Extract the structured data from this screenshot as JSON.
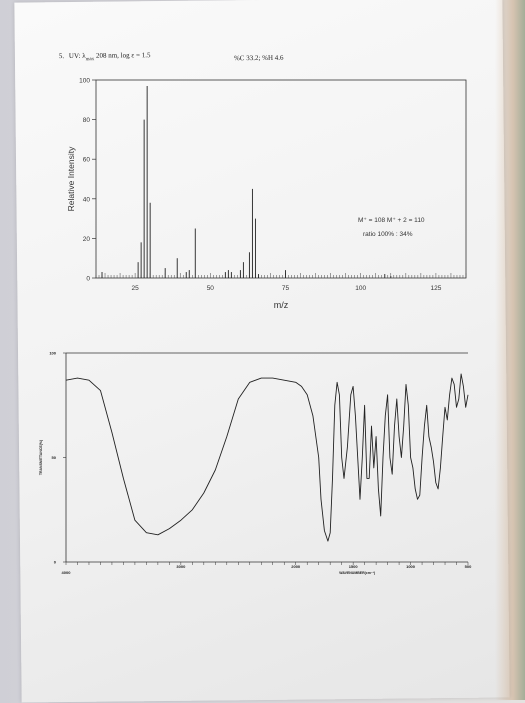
{
  "header": {
    "problem_no": "5.",
    "uv_text": "UV: λ",
    "uv_sub": "max",
    "uv_rest": "208 nm, log ε = 1.5",
    "composition": "%C 33.2; %H 4.6"
  },
  "chart_data": [
    {
      "type": "bar",
      "title": "",
      "xlabel": "m/z",
      "ylabel": "Relative Intensity",
      "xlim": [
        12,
        135
      ],
      "ylim": [
        0,
        100
      ],
      "xticks": [
        25,
        50,
        75,
        100,
        125
      ],
      "yticks": [
        0,
        20,
        40,
        60,
        80,
        100
      ],
      "peaks": [
        {
          "x": 14,
          "y": 3
        },
        {
          "x": 26,
          "y": 8
        },
        {
          "x": 27,
          "y": 18
        },
        {
          "x": 28,
          "y": 80
        },
        {
          "x": 29,
          "y": 97
        },
        {
          "x": 30,
          "y": 38
        },
        {
          "x": 35,
          "y": 5
        },
        {
          "x": 39,
          "y": 10
        },
        {
          "x": 42,
          "y": 3
        },
        {
          "x": 43,
          "y": 4
        },
        {
          "x": 45,
          "y": 25
        },
        {
          "x": 55,
          "y": 3
        },
        {
          "x": 56,
          "y": 4
        },
        {
          "x": 57,
          "y": 3
        },
        {
          "x": 60,
          "y": 4
        },
        {
          "x": 61,
          "y": 8
        },
        {
          "x": 63,
          "y": 13
        },
        {
          "x": 64,
          "y": 45
        },
        {
          "x": 65,
          "y": 30
        },
        {
          "x": 66,
          "y": 2
        },
        {
          "x": 75,
          "y": 4
        },
        {
          "x": 108,
          "y": 2
        },
        {
          "x": 110,
          "y": 1
        }
      ],
      "annotation_lines": [
        "M⁺ = 108   M⁺ + 2 = 110",
        "ratio 100% : 34%"
      ]
    },
    {
      "type": "line",
      "title": "",
      "xlabel": "WAVENUMBER(cm⁻¹)",
      "ylabel": "TRANSMITTANCE(%)",
      "xlim": [
        4000,
        500
      ],
      "ylim": [
        0,
        100
      ],
      "xtick_labels": [
        "4000",
        "3000",
        "2000",
        "1500",
        "1000",
        "500"
      ],
      "ytick_labels": [
        "0",
        "50",
        "100"
      ],
      "x": [
        4000,
        3900,
        3800,
        3700,
        3600,
        3500,
        3400,
        3300,
        3200,
        3100,
        3000,
        2900,
        2800,
        2700,
        2600,
        2500,
        2400,
        2300,
        2200,
        2100,
        2000,
        1950,
        1900,
        1850,
        1800,
        1780,
        1750,
        1720,
        1700,
        1680,
        1660,
        1640,
        1620,
        1600,
        1580,
        1550,
        1520,
        1500,
        1480,
        1460,
        1440,
        1420,
        1400,
        1380,
        1360,
        1340,
        1320,
        1300,
        1280,
        1260,
        1240,
        1220,
        1200,
        1180,
        1160,
        1140,
        1120,
        1100,
        1080,
        1060,
        1040,
        1020,
        1000,
        980,
        960,
        940,
        920,
        900,
        880,
        860,
        840,
        820,
        800,
        780,
        760,
        740,
        720,
        700,
        680,
        660,
        640,
        620,
        600,
        580,
        560,
        540,
        520,
        500
      ],
      "y": [
        87,
        88,
        87,
        82,
        62,
        40,
        20,
        14,
        13,
        16,
        20,
        25,
        33,
        44,
        60,
        78,
        86,
        88,
        88,
        87,
        86,
        84,
        80,
        70,
        50,
        30,
        15,
        10,
        14,
        40,
        75,
        86,
        80,
        50,
        40,
        55,
        80,
        84,
        70,
        50,
        30,
        50,
        75,
        40,
        40,
        65,
        45,
        60,
        35,
        22,
        50,
        70,
        80,
        50,
        42,
        65,
        78,
        60,
        50,
        65,
        85,
        75,
        50,
        45,
        35,
        30,
        32,
        50,
        65,
        75,
        60,
        55,
        48,
        38,
        35,
        45,
        60,
        74,
        68,
        80,
        88,
        85,
        74,
        78,
        90,
        84,
        74,
        80
      ]
    }
  ]
}
